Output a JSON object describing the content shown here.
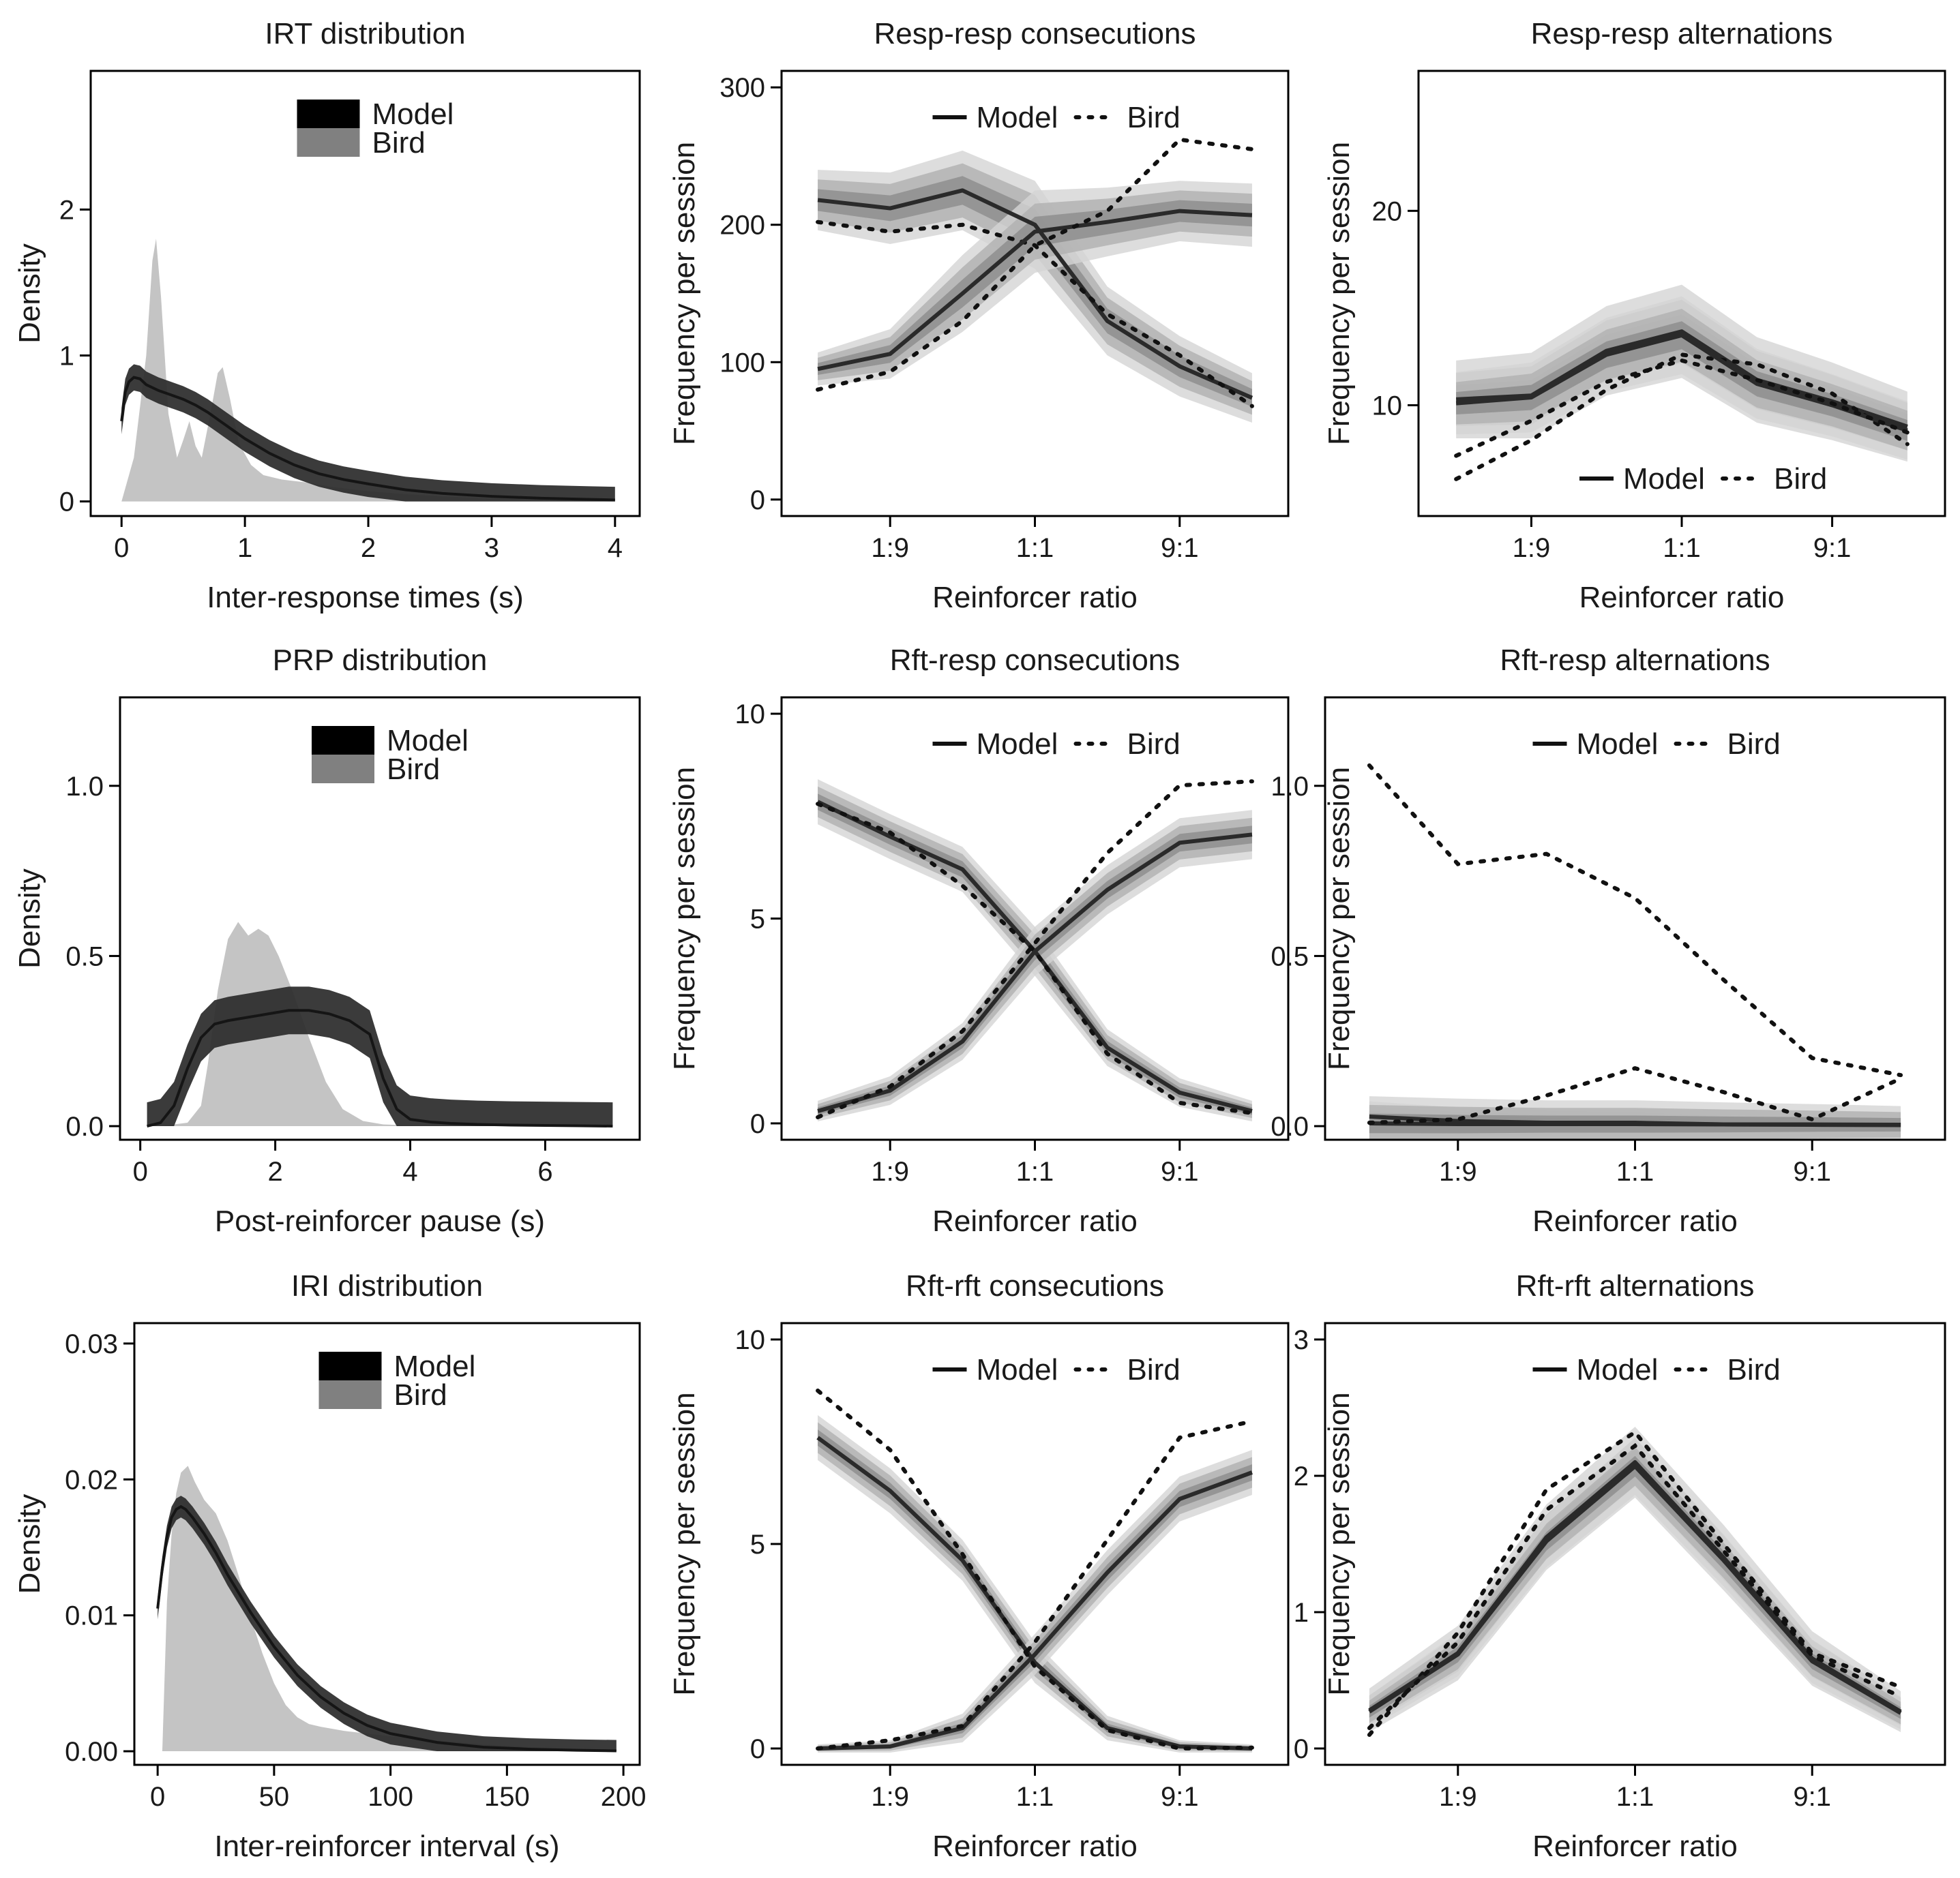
{
  "figure": {
    "legend_model": "Model",
    "legend_bird": "Bird",
    "colors": {
      "model": "#2a2a2a",
      "bird_density": "#c4c4c4",
      "bird_legend": "#808080",
      "band_outer": "#d4d4d4",
      "band_mid": "#b0b0b0",
      "band_inner": "#8c8c8c"
    }
  },
  "chart_data": [
    {
      "id": "irt",
      "type": "area",
      "title": "IRT distribution",
      "xlabel": "Inter-response times (s)",
      "ylabel": "Density",
      "xlim": [
        -0.25,
        4.2
      ],
      "ylim": [
        -0.1,
        2.95
      ],
      "xticks": [
        0,
        1,
        2,
        3,
        4
      ],
      "yticks": [
        0,
        1,
        2
      ],
      "xticklabels": [
        "0",
        "1",
        "2",
        "3",
        "4"
      ],
      "yticklabels": [
        "0",
        "1",
        "2"
      ],
      "legend": "top-center",
      "bird_density": {
        "x": [
          0,
          0.1,
          0.2,
          0.25,
          0.28,
          0.32,
          0.38,
          0.45,
          0.5,
          0.55,
          0.6,
          0.65,
          0.72,
          0.78,
          0.82,
          0.88,
          0.95,
          1.05,
          1.15,
          1.3,
          1.5,
          1.7,
          2.0,
          2.3,
          2.6,
          3.0,
          3.4,
          3.8,
          4.0
        ],
        "y": [
          0,
          0.3,
          1.0,
          1.65,
          1.8,
          1.4,
          0.6,
          0.3,
          0.42,
          0.55,
          0.38,
          0.3,
          0.6,
          0.88,
          0.92,
          0.7,
          0.4,
          0.25,
          0.18,
          0.15,
          0.13,
          0.1,
          0.07,
          0.05,
          0.035,
          0.02,
          0.012,
          0.006,
          0.003
        ]
      },
      "model_density": {
        "x": [
          0,
          0.03,
          0.06,
          0.1,
          0.15,
          0.2,
          0.3,
          0.4,
          0.5,
          0.6,
          0.7,
          0.8,
          0.9,
          1.0,
          1.2,
          1.4,
          1.6,
          1.8,
          2.0,
          2.3,
          2.6,
          3.0,
          3.4,
          3.8,
          4.0
        ],
        "y": [
          0.55,
          0.75,
          0.82,
          0.85,
          0.84,
          0.8,
          0.76,
          0.73,
          0.7,
          0.66,
          0.61,
          0.55,
          0.49,
          0.43,
          0.33,
          0.25,
          0.19,
          0.15,
          0.12,
          0.08,
          0.055,
          0.035,
          0.022,
          0.014,
          0.01
        ]
      },
      "model_width": 0.09
    },
    {
      "id": "rr-cons",
      "type": "line",
      "title": "Resp-resp consecutions",
      "xlabel": "Reinforcer ratio",
      "ylabel": "Frequency per session",
      "xlim": [
        -0.5,
        6.5
      ],
      "ylim": [
        -12,
        312
      ],
      "xticks": [
        1,
        3,
        5
      ],
      "xticklabels": [
        "1:9",
        "1:1",
        "9:1"
      ],
      "yticks": [
        0,
        100,
        200,
        300
      ],
      "yticklabels": [
        "0",
        "100",
        "200",
        "300"
      ],
      "legend": "top-center",
      "x": [
        0,
        1,
        2,
        3,
        4,
        5,
        6
      ],
      "series": [
        {
          "model": [
            218,
            212,
            225,
            200,
            130,
            97,
            74
          ],
          "bird": [
            202,
            195,
            200,
            185,
            135,
            105,
            68
          ],
          "band": [
            22,
            26,
            29,
            32,
            25,
            22,
            18
          ]
        },
        {
          "model": [
            95,
            106,
            150,
            195,
            202,
            210,
            207
          ],
          "bird": [
            80,
            93,
            130,
            185,
            210,
            262,
            255
          ],
          "band": [
            12,
            18,
            28,
            30,
            25,
            22,
            23
          ]
        }
      ]
    },
    {
      "id": "rr-alt",
      "type": "line",
      "title": "Resp-resp alternations",
      "xlabel": "Reinforcer ratio",
      "ylabel": "Frequency per session",
      "xlim": [
        -0.5,
        6.5
      ],
      "ylim": [
        4.3,
        27.2
      ],
      "xticks": [
        1,
        3,
        5
      ],
      "xticklabels": [
        "1:9",
        "1:1",
        "9:1"
      ],
      "yticks": [
        10,
        20
      ],
      "yticklabels": [
        "10",
        "20"
      ],
      "legend": "bottom-center",
      "x": [
        0,
        1,
        2,
        3,
        4,
        5,
        6
      ],
      "series": [
        {
          "model": [
            10.3,
            10.5,
            12.8,
            13.8,
            11.3,
            10.2,
            8.9
          ],
          "bird": [
            6.2,
            8.2,
            10.8,
            12.6,
            12.1,
            10.6,
            8.0
          ],
          "band": [
            2.0,
            2.2,
            2.3,
            2.4,
            2.2,
            2.0,
            1.8
          ]
        },
        {
          "model": [
            10.1,
            10.4,
            12.6,
            13.6,
            11.1,
            10.0,
            8.7
          ],
          "bird": [
            7.4,
            9.2,
            11.2,
            12.3,
            11.3,
            10.1,
            8.6
          ],
          "band": [
            1.6,
            1.8,
            1.9,
            2.0,
            1.8,
            1.6,
            1.5
          ]
        }
      ]
    },
    {
      "id": "prp",
      "type": "area",
      "title": "PRP distribution",
      "xlabel": "Post-reinforcer pause (s)",
      "ylabel": "Density",
      "xlim": [
        -0.3,
        7.4
      ],
      "ylim": [
        -0.04,
        1.26
      ],
      "xticks": [
        0,
        2,
        4,
        6
      ],
      "yticks": [
        0,
        0.5,
        1.0
      ],
      "xticklabels": [
        "0",
        "2",
        "4",
        "6"
      ],
      "yticklabels": [
        "0.0",
        "0.5",
        "1.0"
      ],
      "legend": "top-center",
      "bird_density": {
        "x": [
          0.3,
          0.7,
          0.9,
          1.0,
          1.15,
          1.3,
          1.45,
          1.6,
          1.75,
          1.9,
          2.05,
          2.25,
          2.5,
          2.75,
          3.0,
          3.3,
          3.6,
          4.0,
          4.5,
          5.0,
          6.0,
          7.0
        ],
        "y": [
          0,
          0.01,
          0.06,
          0.18,
          0.4,
          0.55,
          0.6,
          0.56,
          0.58,
          0.56,
          0.5,
          0.4,
          0.26,
          0.13,
          0.05,
          0.015,
          0.005,
          0.002,
          0,
          0,
          0,
          0
        ]
      },
      "model_density": {
        "x": [
          0.1,
          0.3,
          0.5,
          0.7,
          0.9,
          1.1,
          1.3,
          1.6,
          1.9,
          2.2,
          2.5,
          2.8,
          3.1,
          3.4,
          3.6,
          3.8,
          4.0,
          4.3,
          4.6,
          5.0,
          5.5,
          6.0,
          6.5,
          7.0
        ],
        "y": [
          0,
          0.01,
          0.06,
          0.17,
          0.26,
          0.3,
          0.31,
          0.32,
          0.33,
          0.34,
          0.34,
          0.33,
          0.31,
          0.27,
          0.14,
          0.05,
          0.02,
          0.012,
          0.008,
          0.005,
          0.003,
          0.002,
          0.001,
          0
        ]
      },
      "model_width": 0.07
    },
    {
      "id": "rfr-cons",
      "type": "line",
      "title": "Rft-resp consecutions",
      "xlabel": "Reinforcer ratio",
      "ylabel": "Frequency per session",
      "xlim": [
        -0.5,
        6.5
      ],
      "ylim": [
        -0.4,
        10.4
      ],
      "xticks": [
        1,
        3,
        5
      ],
      "xticklabels": [
        "1:9",
        "1:1",
        "9:1"
      ],
      "yticks": [
        0,
        5,
        10
      ],
      "yticklabels": [
        "0",
        "5",
        "10"
      ],
      "legend": "top-center",
      "x": [
        0,
        1,
        2,
        3,
        4,
        5,
        6
      ],
      "series": [
        {
          "model": [
            7.85,
            7.0,
            6.2,
            4.2,
            1.85,
            0.75,
            0.3
          ],
          "bird": [
            7.8,
            7.1,
            5.8,
            4.2,
            1.7,
            0.5,
            0.25
          ],
          "band": [
            0.55,
            0.55,
            0.55,
            0.6,
            0.45,
            0.35,
            0.25
          ]
        },
        {
          "model": [
            0.3,
            0.8,
            2.0,
            4.2,
            5.7,
            6.85,
            7.05
          ],
          "bird": [
            0.15,
            0.9,
            2.25,
            4.4,
            6.6,
            8.25,
            8.35
          ],
          "band": [
            0.25,
            0.35,
            0.45,
            0.6,
            0.6,
            0.6,
            0.6
          ]
        }
      ]
    },
    {
      "id": "rfr-alt",
      "type": "line",
      "title": "Rft-resp alternations",
      "xlabel": "Reinforcer ratio",
      "ylabel": "Frequency per session",
      "xlim": [
        -0.5,
        6.5
      ],
      "ylim": [
        -0.04,
        1.26
      ],
      "xticks": [
        1,
        3,
        5
      ],
      "xticklabels": [
        "1:9",
        "1:1",
        "9:1"
      ],
      "yticks": [
        0,
        0.5,
        1.0
      ],
      "yticklabels": [
        "0.0",
        "0.5",
        "1.0"
      ],
      "legend": "top-center",
      "x": [
        0,
        1,
        2,
        3,
        4,
        5,
        6
      ],
      "series": [
        {
          "model": [
            0.028,
            0.015,
            0.01,
            0.01,
            0.005,
            0.004,
            0.003
          ],
          "bird": [
            1.06,
            0.77,
            0.8,
            0.67,
            0.43,
            0.2,
            0.15
          ],
          "band": [
            0.045,
            0.04,
            0.035,
            0.03,
            0.025,
            0.02,
            0.02
          ]
        },
        {
          "model": [
            0.008,
            0.006,
            0.006,
            0.006,
            0.005,
            0.005,
            0.004
          ],
          "bird": [
            0.01,
            0.02,
            0.09,
            0.17,
            0.1,
            0.02,
            0.14
          ],
          "band": [
            0.08,
            0.075,
            0.07,
            0.07,
            0.065,
            0.06,
            0.055
          ]
        }
      ]
    },
    {
      "id": "iri",
      "type": "area",
      "title": "IRI distribution",
      "xlabel": "Inter-reinforcer interval (s)",
      "ylabel": "Density",
      "xlim": [
        -10,
        207
      ],
      "ylim": [
        -0.001,
        0.0315
      ],
      "xticks": [
        0,
        50,
        100,
        150,
        200
      ],
      "yticks": [
        0,
        0.01,
        0.02,
        0.03
      ],
      "xticklabels": [
        "0",
        "50",
        "100",
        "150",
        "200"
      ],
      "yticklabels": [
        "0.00",
        "0.01",
        "0.02",
        "0.03"
      ],
      "legend": "top-center",
      "bird_density": {
        "x": [
          2,
          4,
          6,
          8,
          10,
          13,
          16,
          20,
          25,
          30,
          35,
          40,
          45,
          50,
          55,
          60,
          65,
          70,
          80,
          90,
          100,
          120,
          140,
          160,
          180,
          197
        ],
        "y": [
          0,
          0.011,
          0.016,
          0.019,
          0.0205,
          0.021,
          0.0198,
          0.0185,
          0.0175,
          0.0155,
          0.0128,
          0.0098,
          0.0072,
          0.005,
          0.0034,
          0.0025,
          0.002,
          0.0018,
          0.0015,
          0.0013,
          0.0011,
          0.0008,
          0.0005,
          0.0003,
          0.0002,
          0.0001
        ]
      },
      "model_density": {
        "x": [
          0,
          2,
          4,
          6,
          8,
          10,
          12,
          15,
          20,
          25,
          30,
          40,
          50,
          60,
          70,
          80,
          90,
          100,
          120,
          140,
          160,
          180,
          197
        ],
        "y": [
          0.0105,
          0.0135,
          0.0158,
          0.0172,
          0.0178,
          0.018,
          0.0178,
          0.0172,
          0.016,
          0.0146,
          0.013,
          0.0102,
          0.0077,
          0.0056,
          0.004,
          0.0028,
          0.0019,
          0.0013,
          0.00065,
          0.0003,
          0.00015,
          7e-05,
          3e-05
        ]
      },
      "model_width": 0.0008
    },
    {
      "id": "rff-cons",
      "type": "line",
      "title": "Rft-rft consecutions",
      "xlabel": "Reinforcer ratio",
      "ylabel": "Frequency per session",
      "xlim": [
        -0.5,
        6.5
      ],
      "ylim": [
        -0.4,
        10.4
      ],
      "xticks": [
        1,
        3,
        5
      ],
      "xticklabels": [
        "1:9",
        "1:1",
        "9:1"
      ],
      "yticks": [
        0,
        5,
        10
      ],
      "yticklabels": [
        "0",
        "5",
        "10"
      ],
      "legend": "top-center",
      "x": [
        0,
        1,
        2,
        3,
        4,
        5,
        6
      ],
      "series": [
        {
          "model": [
            7.6,
            6.3,
            4.6,
            2.1,
            0.5,
            0.05,
            0.0
          ],
          "bird": [
            8.75,
            7.3,
            4.75,
            2.0,
            0.45,
            0.0,
            0.02
          ],
          "band": [
            0.55,
            0.55,
            0.5,
            0.5,
            0.3,
            0.15,
            0.1
          ]
        },
        {
          "model": [
            0.0,
            0.05,
            0.5,
            2.3,
            4.3,
            6.1,
            6.75
          ],
          "bird": [
            0.0,
            0.2,
            0.55,
            2.6,
            5.1,
            7.6,
            8.0
          ],
          "band": [
            0.1,
            0.15,
            0.35,
            0.5,
            0.55,
            0.55,
            0.55
          ]
        }
      ]
    },
    {
      "id": "rff-alt",
      "type": "line",
      "title": "Rft-rft alternations",
      "xlabel": "Reinforcer ratio",
      "ylabel": "Frequency per session",
      "xlim": [
        -0.5,
        6.5
      ],
      "ylim": [
        -0.12,
        3.12
      ],
      "xticks": [
        1,
        3,
        5
      ],
      "xticklabels": [
        "1:9",
        "1:1",
        "9:1"
      ],
      "yticks": [
        0,
        1,
        2,
        3
      ],
      "yticklabels": [
        "0",
        "1",
        "2",
        "3"
      ],
      "legend": "top-center",
      "x": [
        0,
        1,
        2,
        3,
        4,
        5,
        6
      ],
      "series": [
        {
          "model": [
            0.28,
            0.7,
            1.55,
            2.1,
            1.4,
            0.66,
            0.27
          ],
          "bird": [
            0.1,
            0.85,
            1.9,
            2.32,
            1.5,
            0.7,
            0.45
          ],
          "band": [
            0.16,
            0.2,
            0.24,
            0.26,
            0.24,
            0.2,
            0.15
          ]
        },
        {
          "model": [
            0.27,
            0.69,
            1.52,
            2.07,
            1.38,
            0.64,
            0.26
          ],
          "bird": [
            0.15,
            0.78,
            1.75,
            2.22,
            1.45,
            0.68,
            0.38
          ],
          "band": [
            0.12,
            0.16,
            0.19,
            0.21,
            0.19,
            0.16,
            0.12
          ]
        }
      ]
    }
  ]
}
